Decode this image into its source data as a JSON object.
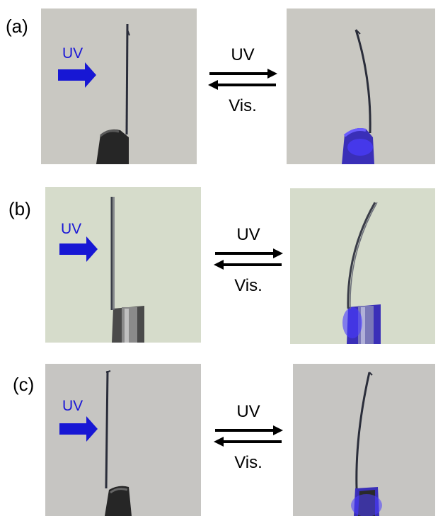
{
  "figure": {
    "panels": [
      {
        "label": "(a)",
        "uv_indicator_label": "UV",
        "forward_label": "UV",
        "reverse_label": "Vis."
      },
      {
        "label": "(b)",
        "uv_indicator_label": "UV",
        "forward_label": "UV",
        "reverse_label": "Vis."
      },
      {
        "label": "(c)",
        "uv_indicator_label": "UV",
        "forward_label": "UV",
        "reverse_label": "Vis."
      }
    ],
    "colors": {
      "uv_arrow": "#1717d4",
      "uv_glow": "#4a3cff",
      "background_a": "#c9c8c2",
      "background_b": "#d6dccb",
      "background_c": "#c6c5c2"
    }
  }
}
